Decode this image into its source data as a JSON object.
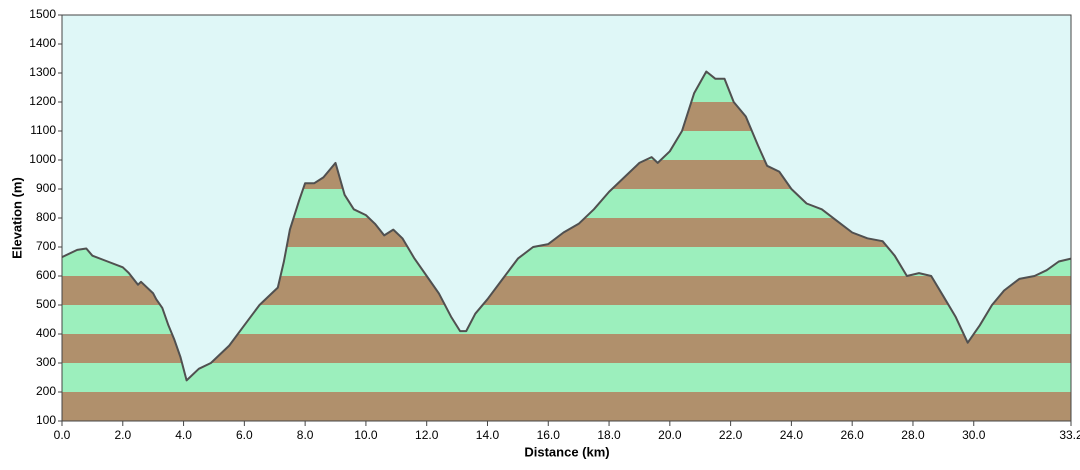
{
  "chart_data": {
    "type": "area-profile",
    "x_label": "Distance   (km)",
    "y_label": "Elevation (m)",
    "x": [
      0,
      0.5,
      0.8,
      1.0,
      1.5,
      2.0,
      2.2,
      2.5,
      2.6,
      3.0,
      3.1,
      3.3,
      3.5,
      3.7,
      3.9,
      4.1,
      4.5,
      4.9,
      5.5,
      6.0,
      6.5,
      6.9,
      7.1,
      7.3,
      7.5,
      7.8,
      8.0,
      8.3,
      8.6,
      9.0,
      9.3,
      9.6,
      10.0,
      10.3,
      10.6,
      10.9,
      11.2,
      11.6,
      12.0,
      12.4,
      12.8,
      13.1,
      13.3,
      13.6,
      14.0,
      14.5,
      15.0,
      15.5,
      16.0,
      16.5,
      17.0,
      17.5,
      18.0,
      18.5,
      19.0,
      19.4,
      19.6,
      20.0,
      20.4,
      20.8,
      21.2,
      21.5,
      21.8,
      22.1,
      22.5,
      22.9,
      23.2,
      23.6,
      24.0,
      24.5,
      25.0,
      25.5,
      26.0,
      26.5,
      27.0,
      27.4,
      27.8,
      28.2,
      28.6,
      29.0,
      29.4,
      29.8,
      30.2,
      30.6,
      31.0,
      31.5,
      32.0,
      32.4,
      32.8,
      33.2
    ],
    "values": [
      665,
      690,
      695,
      670,
      650,
      630,
      610,
      570,
      580,
      540,
      520,
      490,
      430,
      380,
      320,
      240,
      280,
      300,
      360,
      430,
      500,
      540,
      560,
      650,
      760,
      860,
      920,
      920,
      940,
      990,
      880,
      830,
      810,
      780,
      740,
      760,
      730,
      660,
      600,
      540,
      460,
      410,
      410,
      470,
      520,
      590,
      660,
      700,
      710,
      750,
      780,
      830,
      890,
      940,
      990,
      1010,
      990,
      1030,
      1100,
      1230,
      1305,
      1280,
      1280,
      1200,
      1150,
      1050,
      980,
      960,
      900,
      850,
      830,
      790,
      750,
      730,
      720,
      670,
      600,
      610,
      600,
      530,
      460,
      370,
      430,
      500,
      550,
      590,
      600,
      620,
      650,
      660
    ],
    "xlim": [
      0,
      33.2
    ],
    "ylim": [
      100,
      1500
    ],
    "xticks": [
      {
        "value": 0,
        "label": "0.0"
      },
      {
        "value": 2,
        "label": "2.0"
      },
      {
        "value": 4,
        "label": "4.0"
      },
      {
        "value": 6,
        "label": "6.0"
      },
      {
        "value": 8,
        "label": "8.0"
      },
      {
        "value": 10,
        "label": "10.0"
      },
      {
        "value": 12,
        "label": "12.0"
      },
      {
        "value": 14,
        "label": "14.0"
      },
      {
        "value": 16,
        "label": "16.0"
      },
      {
        "value": 18,
        "label": "18.0"
      },
      {
        "value": 20,
        "label": "20.0"
      },
      {
        "value": 22,
        "label": "22.0"
      },
      {
        "value": 24,
        "label": "24.0"
      },
      {
        "value": 26,
        "label": "26.0"
      },
      {
        "value": 28,
        "label": "28.0"
      },
      {
        "value": 30,
        "label": "30.0"
      },
      {
        "value": 33.2,
        "label": "33.2"
      }
    ],
    "yticks": [
      100,
      200,
      300,
      400,
      500,
      600,
      700,
      800,
      900,
      1000,
      1100,
      1200,
      1300,
      1400,
      1500
    ],
    "band_colors": [
      "#b0906c",
      "#9cefbd"
    ],
    "line_color": "#505050",
    "background": "#dff7f7"
  }
}
